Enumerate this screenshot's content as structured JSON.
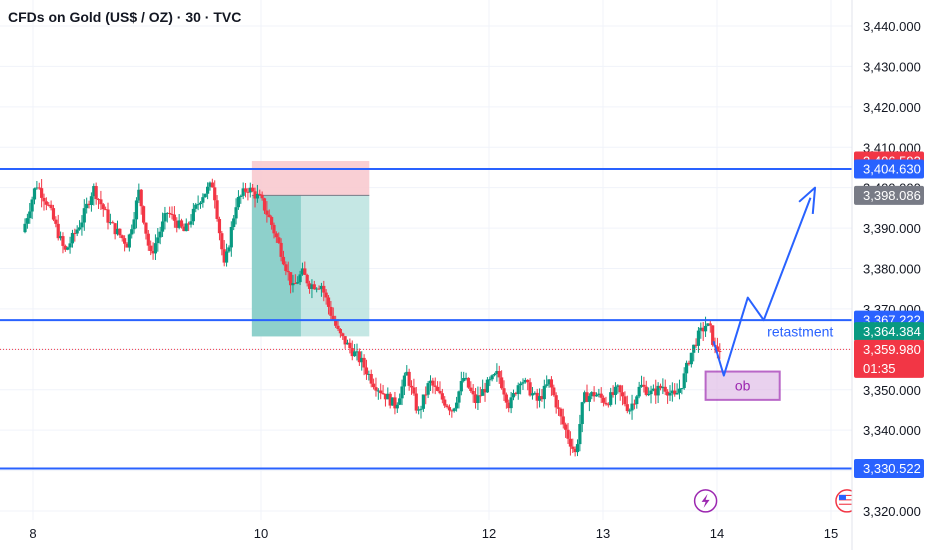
{
  "symbol_title": "CFDs on Gold (US$ / OZ) · 30 · TVC",
  "colors": {
    "up": "#089981",
    "down": "#f23645",
    "line": "#2962ff",
    "ob_fill": "#e1bee7",
    "ob_stroke": "#9c27b0",
    "sl_fill": "#f8c7cc",
    "tp_fill": "#b2dfdb",
    "tp_fill_dark": "#80cbc4",
    "grid": "#f0f3fa",
    "axis_text": "#131722"
  },
  "chart_data": {
    "type": "candlestick",
    "xlabel": "",
    "ylabel": "",
    "ylim": [
      3320,
      3445
    ],
    "x_range": [
      7.93,
      15.5
    ],
    "x_ticks": [
      {
        "value": 8,
        "label": "8"
      },
      {
        "value": 10,
        "label": "10"
      },
      {
        "value": 12,
        "label": "12"
      },
      {
        "value": 13,
        "label": "13"
      },
      {
        "value": 14,
        "label": "14"
      },
      {
        "value": 15,
        "label": "15"
      }
    ],
    "y_ticks": [
      3320,
      3330,
      3340,
      3350,
      3360,
      3370,
      3380,
      3390,
      3400,
      3410,
      3420,
      3430,
      3440
    ],
    "y_tick_labels": [
      "3,320.000",
      "3,330.000",
      "3,340.000",
      "3,350.000",
      "3,360.000",
      "3,370.000",
      "3,380.000",
      "3,390.000",
      "3,400.000",
      "3,410.000",
      "3,420.000",
      "3,430.000",
      "3,440.000"
    ],
    "price_path": [
      [
        7.93,
        3389
      ],
      [
        8.05,
        3401
      ],
      [
        8.15,
        3396
      ],
      [
        8.3,
        3384
      ],
      [
        8.45,
        3392
      ],
      [
        8.55,
        3400
      ],
      [
        8.7,
        3391
      ],
      [
        8.85,
        3386
      ],
      [
        8.95,
        3399
      ],
      [
        9.05,
        3383
      ],
      [
        9.2,
        3394
      ],
      [
        9.35,
        3389
      ],
      [
        9.5,
        3398
      ],
      [
        9.6,
        3401
      ],
      [
        9.7,
        3380
      ],
      [
        9.8,
        3396
      ],
      [
        9.9,
        3400
      ],
      [
        10.02,
        3397
      ],
      [
        10.1,
        3392
      ],
      [
        10.2,
        3384
      ],
      [
        10.3,
        3375
      ],
      [
        10.38,
        3379
      ],
      [
        10.45,
        3376
      ],
      [
        10.55,
        3376
      ],
      [
        10.62,
        3370
      ],
      [
        10.7,
        3364
      ],
      [
        10.78,
        3361
      ],
      [
        10.9,
        3357
      ],
      [
        11.0,
        3352
      ],
      [
        11.1,
        3349
      ],
      [
        11.2,
        3346
      ],
      [
        11.3,
        3354
      ],
      [
        11.4,
        3344
      ],
      [
        11.5,
        3352
      ],
      [
        11.6,
        3348
      ],
      [
        11.7,
        3345
      ],
      [
        11.8,
        3353
      ],
      [
        11.9,
        3347
      ],
      [
        12.0,
        3351
      ],
      [
        12.1,
        3354
      ],
      [
        12.2,
        3346
      ],
      [
        12.3,
        3353
      ],
      [
        12.45,
        3347
      ],
      [
        12.55,
        3352
      ],
      [
        12.65,
        3343
      ],
      [
        12.72,
        3338
      ],
      [
        12.78,
        3334
      ],
      [
        12.85,
        3348
      ],
      [
        12.95,
        3349
      ],
      [
        13.05,
        3347
      ],
      [
        13.15,
        3350
      ],
      [
        13.25,
        3345
      ],
      [
        13.35,
        3351
      ],
      [
        13.45,
        3349
      ],
      [
        13.55,
        3351
      ],
      [
        13.65,
        3348
      ],
      [
        13.72,
        3352
      ],
      [
        13.78,
        3358
      ],
      [
        13.85,
        3363
      ],
      [
        13.92,
        3366
      ],
      [
        13.96,
        3365
      ],
      [
        14.0,
        3360
      ],
      [
        14.03,
        3359.98
      ]
    ],
    "horizontal_levels": [
      3404.63,
      3367.222,
      3330.522
    ],
    "price_labels": [
      {
        "value": 3406.593,
        "label": "3,406.593",
        "color": "#f23645"
      },
      {
        "value": 3404.63,
        "label": "3,404.630",
        "color": "#2962ff"
      },
      {
        "value": 3398.086,
        "label": "3,398.086",
        "color": "#787b86"
      },
      {
        "value": 3367.222,
        "label": "3,367.222",
        "color": "#2962ff"
      },
      {
        "value": 3364.384,
        "label": "3,364.384",
        "color": "#089981"
      }
    ],
    "current_price": {
      "value": 3359.98,
      "label": "3,359.980",
      "countdown": "01:35",
      "color": "#f23645"
    },
    "position_box": {
      "x_start": 9.92,
      "x_end": 10.95,
      "x_fill_end": 10.35,
      "entry": 3398.086,
      "stop": 3406.593,
      "target": 3363.2
    },
    "order_block": {
      "x_start": 13.9,
      "x_end": 14.55,
      "y_low": 3347.5,
      "y_high": 3354.5,
      "label": "ob"
    },
    "projection_path": [
      [
        13.97,
        3362
      ],
      [
        14.06,
        3353.5
      ],
      [
        14.27,
        3372.8
      ],
      [
        14.41,
        3367.222
      ],
      [
        14.82,
        3397.5
      ]
    ],
    "projection_arrowhead": [
      [
        14.72,
        3396.5
      ],
      [
        14.86,
        3400
      ],
      [
        14.84,
        3393.5
      ]
    ],
    "annotation": {
      "text": "retastment",
      "x": 14.44,
      "y": 3364.4
    },
    "event_icons": [
      {
        "name": "earnings-flash-icon",
        "x": 13.9,
        "y": 3322.5
      },
      {
        "name": "us-flag-icon",
        "x": 15.14,
        "y": 3322.5
      }
    ]
  }
}
